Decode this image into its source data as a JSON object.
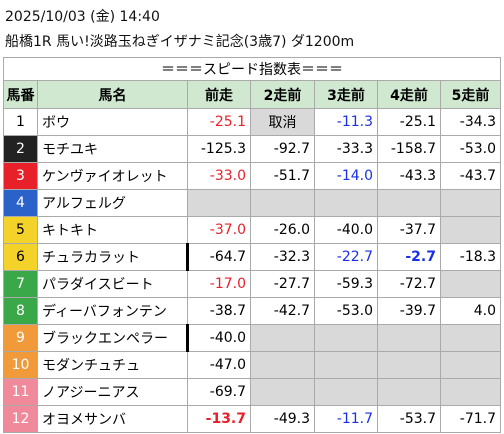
{
  "header": {
    "datetime": "2025/10/03 (金) 14:40",
    "race": "船橋1R 馬い!淡路玉ねぎイザナミ記念(3歳7) ダ1200m"
  },
  "table": {
    "title": "＝＝＝スピード指数表＝＝＝",
    "columns": [
      "馬番",
      "馬名",
      "前走",
      "2走前",
      "3走前",
      "4走前",
      "5走前"
    ],
    "rows": [
      {
        "num": "1",
        "frame": "#ffffff",
        "name": "ボウ",
        "cells": [
          {
            "text": "-25.1",
            "color": "red"
          },
          {
            "text": "取消",
            "gray": true
          },
          {
            "text": "-11.3",
            "color": "blue"
          },
          {
            "text": "-25.1"
          },
          {
            "text": "-34.3"
          }
        ]
      },
      {
        "num": "2",
        "frame": "#222222",
        "name": "モチユキ",
        "cells": [
          {
            "text": "-125.3"
          },
          {
            "text": "-92.7"
          },
          {
            "text": "-33.3"
          },
          {
            "text": "-158.7"
          },
          {
            "text": "-53.0"
          }
        ]
      },
      {
        "num": "3",
        "frame": "#e8202a",
        "name": "ケンヴァイオレット",
        "cells": [
          {
            "text": "-33.0",
            "color": "red"
          },
          {
            "text": "-51.7"
          },
          {
            "text": "-14.0",
            "color": "blue"
          },
          {
            "text": "-43.3"
          },
          {
            "text": "-43.7"
          }
        ]
      },
      {
        "num": "4",
        "frame": "#2a62c9",
        "name": "アルフェルグ",
        "cells": [
          null,
          null,
          null,
          null,
          null
        ]
      },
      {
        "num": "5",
        "frame": "#f3d22a",
        "name": "キトキト",
        "cells": [
          {
            "text": "-37.0",
            "color": "red"
          },
          {
            "text": "-26.0"
          },
          {
            "text": "-40.0"
          },
          {
            "text": "-37.7"
          },
          null
        ]
      },
      {
        "num": "6",
        "frame": "#f3d22a",
        "name": "チュラカラット",
        "cells": [
          {
            "text": "-64.7",
            "mark": true
          },
          {
            "text": "-32.3"
          },
          {
            "text": "-22.7",
            "color": "blue"
          },
          {
            "text": "-2.7",
            "color": "blue",
            "bold": true
          },
          {
            "text": "-18.3"
          }
        ]
      },
      {
        "num": "7",
        "frame": "#3aa848",
        "name": "パラダイスビート",
        "cells": [
          {
            "text": "-17.0",
            "color": "red"
          },
          {
            "text": "-27.7"
          },
          {
            "text": "-59.3"
          },
          {
            "text": "-72.7"
          },
          null
        ]
      },
      {
        "num": "8",
        "frame": "#3aa848",
        "name": "ディーバフォンテン",
        "cells": [
          {
            "text": "-38.7"
          },
          {
            "text": "-42.7"
          },
          {
            "text": "-53.0"
          },
          {
            "text": "-39.7"
          },
          {
            "text": "4.0"
          }
        ]
      },
      {
        "num": "9",
        "frame": "#f09a3a",
        "name": "ブラックエンペラー",
        "cells": [
          {
            "text": "-40.0",
            "mark": true
          },
          null,
          null,
          null,
          null
        ]
      },
      {
        "num": "10",
        "frame": "#f09a3a",
        "name": "モダンチュチュ",
        "cells": [
          {
            "text": "-47.0"
          },
          null,
          null,
          null,
          null
        ]
      },
      {
        "num": "11",
        "frame": "#f08a9a",
        "name": "ノアジーニアス",
        "cells": [
          {
            "text": "-69.7"
          },
          null,
          null,
          null,
          null
        ]
      },
      {
        "num": "12",
        "frame": "#f08a9a",
        "name": "オヨメサンバ",
        "cells": [
          {
            "text": "-13.7",
            "color": "red",
            "bold": true
          },
          {
            "text": "-49.3"
          },
          {
            "text": "-11.7",
            "color": "blue"
          },
          {
            "text": "-53.7"
          },
          {
            "text": "-71.7"
          }
        ]
      }
    ]
  }
}
